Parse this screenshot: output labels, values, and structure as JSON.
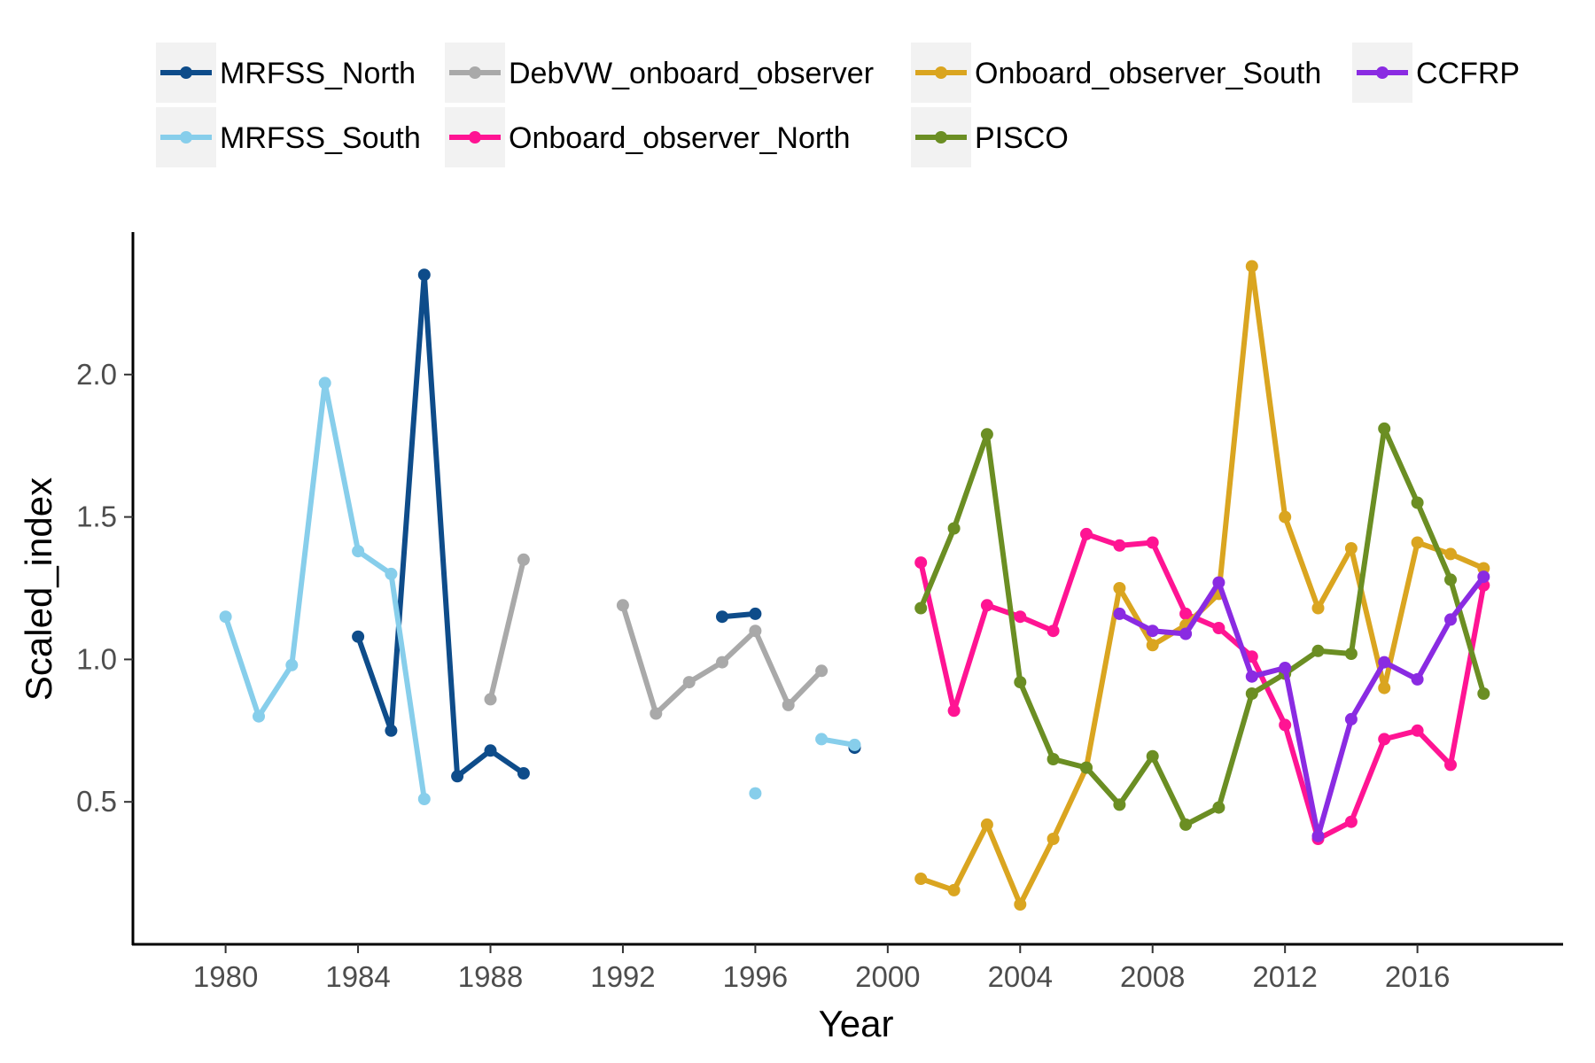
{
  "chart_data": {
    "type": "line",
    "xlabel": "Year",
    "ylabel": "Scaled_index",
    "xlim": [
      1977.2,
      2020.4
    ],
    "ylim": [
      0.0,
      2.5
    ],
    "x_ticks": [
      1980,
      1984,
      1988,
      1992,
      1996,
      2000,
      2004,
      2008,
      2012,
      2016
    ],
    "y_ticks": [
      0.5,
      1.0,
      1.5,
      2.0
    ],
    "y_tick_labels": [
      "0.5",
      "1.0",
      "1.5",
      "2.0"
    ],
    "grid": false,
    "legend_position": "top",
    "series": [
      {
        "name": "MRFSS_North",
        "color": "#0E4C8A",
        "x": [
          1984,
          1985,
          1986,
          1987,
          1988,
          1989,
          null,
          1995,
          1996,
          null,
          1999
        ],
        "y": [
          1.08,
          0.75,
          2.35,
          0.59,
          0.68,
          0.6,
          null,
          1.15,
          1.16,
          null,
          0.69
        ]
      },
      {
        "name": "MRFSS_South",
        "color": "#87CEEB",
        "x": [
          1980,
          1981,
          1982,
          1983,
          1984,
          1985,
          1986,
          null,
          1996,
          null,
          1998,
          1999
        ],
        "y": [
          1.15,
          0.8,
          0.98,
          1.97,
          1.38,
          1.3,
          0.51,
          null,
          0.53,
          null,
          0.72,
          0.7
        ]
      },
      {
        "name": "DebVW_onboard_observer",
        "color": "#A9A9A9",
        "x": [
          1988,
          1989,
          null,
          1992,
          1993,
          1994,
          1995,
          1996,
          1997,
          1998
        ],
        "y": [
          0.86,
          1.35,
          null,
          1.19,
          0.81,
          0.92,
          0.99,
          1.1,
          0.84,
          0.96
        ]
      },
      {
        "name": "Onboard_observer_North",
        "color": "#FF1493",
        "x": [
          2001,
          2002,
          2003,
          2004,
          2005,
          2006,
          2007,
          2008,
          2009,
          2010,
          2011,
          2012,
          2013,
          2014,
          2015,
          2016,
          2017,
          2018
        ],
        "y": [
          1.34,
          0.82,
          1.19,
          1.15,
          1.1,
          1.44,
          1.4,
          1.41,
          1.16,
          1.11,
          1.01,
          0.77,
          0.37,
          0.43,
          0.72,
          0.75,
          0.63,
          1.26
        ]
      },
      {
        "name": "Onboard_observer_South",
        "color": "#DAA520",
        "x": [
          2001,
          2002,
          2003,
          2004,
          2005,
          2006,
          2007,
          2008,
          2009,
          2010,
          2011,
          2012,
          2013,
          2014,
          2015,
          2016,
          2017,
          2018
        ],
        "y": [
          0.23,
          0.19,
          0.42,
          0.14,
          0.37,
          0.62,
          1.25,
          1.05,
          1.12,
          1.23,
          2.38,
          1.5,
          1.18,
          1.39,
          0.9,
          1.41,
          1.37,
          1.32
        ]
      },
      {
        "name": "PISCO",
        "color": "#6B8E23",
        "x": [
          2001,
          2002,
          2003,
          2004,
          2005,
          2006,
          2007,
          2008,
          2009,
          2010,
          2011,
          2012,
          2013,
          2014,
          2015,
          2016,
          2017,
          2018
        ],
        "y": [
          1.18,
          1.46,
          1.79,
          0.92,
          0.65,
          0.62,
          0.49,
          0.66,
          0.42,
          0.48,
          0.88,
          0.95,
          1.03,
          1.02,
          1.81,
          1.55,
          1.28,
          0.88
        ]
      },
      {
        "name": "CCFRP",
        "color": "#8A2BE2",
        "x": [
          2007,
          2008,
          2009,
          2010,
          2011,
          2012,
          2013,
          2014,
          2015,
          2016,
          2017,
          2018
        ],
        "y": [
          1.16,
          1.1,
          1.09,
          1.27,
          0.94,
          0.97,
          0.38,
          0.79,
          0.99,
          0.93,
          1.14,
          1.29
        ]
      }
    ]
  }
}
